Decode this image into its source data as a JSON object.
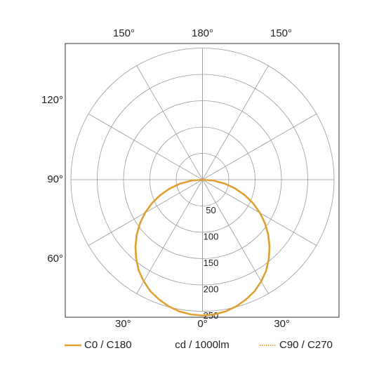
{
  "chart_data": {
    "type": "polar",
    "unit_label": "cd / 1000lm",
    "rlim": [
      0,
      250
    ],
    "rticks": [
      50,
      100,
      150,
      200,
      250
    ],
    "angle_ticks_left": [
      {
        "value": 180,
        "label": "180°"
      },
      {
        "value": 150,
        "label": "150°"
      },
      {
        "value": 120,
        "label": "120°"
      },
      {
        "value": 90,
        "label": "90°"
      },
      {
        "value": 60,
        "label": "60°"
      },
      {
        "value": 30,
        "label": "30°"
      },
      {
        "value": 0,
        "label": "0°"
      }
    ],
    "angle_ticks_right": [
      {
        "value": 150,
        "label": "150°"
      },
      {
        "value": 30,
        "label": "30°"
      }
    ],
    "angles": [
      0,
      5,
      10,
      15,
      20,
      25,
      30,
      35,
      40,
      45,
      50,
      55,
      60,
      65,
      70,
      75,
      80,
      85,
      90
    ],
    "series": [
      {
        "name": "C0 / C180",
        "color": "#e0a032",
        "style": "solid",
        "values": [
          258,
          257,
          254,
          249,
          242,
          234,
          223,
          211,
          196,
          180,
          163,
          145,
          126,
          106,
          85,
          64,
          43,
          21,
          0
        ]
      },
      {
        "name": "C90 / C270",
        "color": "#e0a032",
        "style": "dotted",
        "values": [
          258,
          257,
          254,
          249,
          242,
          234,
          223,
          211,
          197,
          181,
          164,
          146,
          127,
          107,
          86,
          65,
          43,
          21,
          0
        ]
      }
    ]
  }
}
